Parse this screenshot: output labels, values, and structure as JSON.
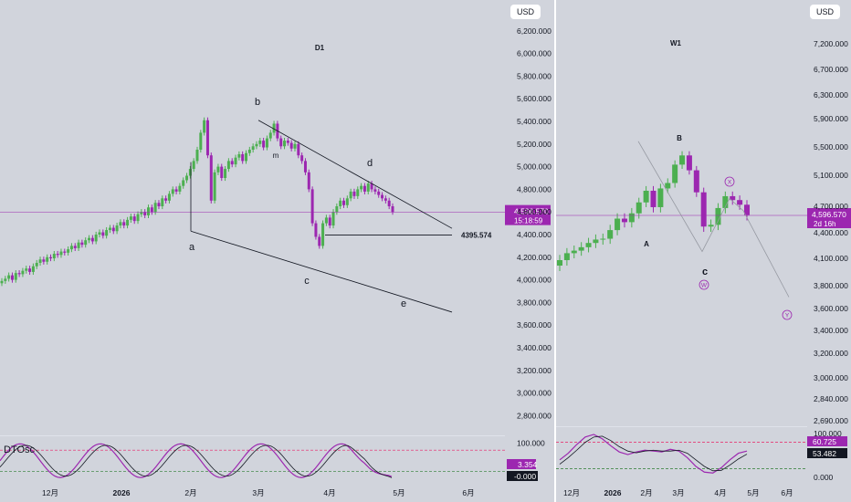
{
  "colors": {
    "up": "#4caf50",
    "down": "#9c27b0",
    "price_line": "#9c27b0",
    "trend_line": "#131722",
    "osc_k": "#9c27b0",
    "osc_d": "#131722",
    "level_high": "#e91e63",
    "level_low": "#2e7d32",
    "background": "#d1d4dc"
  },
  "left": {
    "currency": "USD",
    "timeframe": "D1",
    "price_label": "4,596.570",
    "countdown": "15:18:59",
    "level_label": "4395.574",
    "wave_labels": [
      "a",
      "b",
      "c",
      "d",
      "e",
      "m"
    ],
    "price_ticks": [
      "6,200.000",
      "6,000.000",
      "5,800.000",
      "5,600.000",
      "5,400.000",
      "5,200.000",
      "5,000.000",
      "4,800.000",
      "4,600.000",
      "4,400.000",
      "4,200.000",
      "4,000.000",
      "3,800.000",
      "3,600.000",
      "3,400.000",
      "3,200.000",
      "3,000.000",
      "2,800.000"
    ],
    "time_ticks": [
      "12月",
      "2026",
      "2月",
      "3月",
      "4月",
      "5月",
      "6月"
    ],
    "osc": {
      "title": "DTOsc",
      "ticks": [
        "100.000",
        "0.000"
      ],
      "value_k": "3.354",
      "value_d": "-0.000"
    }
  },
  "right": {
    "currency": "USD",
    "timeframe": "W1",
    "price_label": "4,596.570",
    "countdown": "2d 16h",
    "wave_labels": [
      "A",
      "B",
      "c"
    ],
    "circle_labels": [
      "X",
      "W",
      "Y"
    ],
    "price_ticks": [
      "7,200.000",
      "6,700.000",
      "6,300.000",
      "5,900.000",
      "5,500.000",
      "5,100.000",
      "4,700.000",
      "4,400.000",
      "4,100.000",
      "3,800.000",
      "3,600.000",
      "3,400.000",
      "3,200.000",
      "3,000.000",
      "2,840.000",
      "2,690.000"
    ],
    "time_ticks": [
      "12月",
      "2026",
      "2月",
      "3月",
      "4月",
      "5月",
      "6月"
    ],
    "osc": {
      "ticks": [
        "100.000",
        "0.000"
      ],
      "value_k": "60.725",
      "value_d": "53.482"
    }
  },
  "chart_data": [
    {
      "type": "candlestick",
      "timeframe": "D1",
      "currency": "USD",
      "last_price": 4596.57,
      "support_level": 4395.574,
      "y_range": [
        2700,
        6300
      ],
      "x_ticks": [
        "12月",
        "2026",
        "2月",
        "3月",
        "4月",
        "5月",
        "6月"
      ],
      "pivots": [
        {
          "label": "a",
          "price": 4430
        },
        {
          "label": "b",
          "price": 5410
        },
        {
          "label": "c",
          "price": 4080
        },
        {
          "label": "d",
          "price": 4870
        },
        {
          "label": "e",
          "price": 3780
        }
      ],
      "closes": [
        3990,
        4010,
        4040,
        4000,
        4060,
        4050,
        4080,
        4100,
        4070,
        4120,
        4150,
        4180,
        4160,
        4200,
        4190,
        4230,
        4220,
        4250,
        4240,
        4270,
        4300,
        4280,
        4330,
        4310,
        4350,
        4370,
        4340,
        4400,
        4420,
        4390,
        4440,
        4460,
        4430,
        4480,
        4510,
        4480,
        4530,
        4560,
        4520,
        4580,
        4600,
        4570,
        4640,
        4600,
        4680,
        4650,
        4720,
        4700,
        4760,
        4800,
        4780,
        4830,
        4880,
        4920,
        4980,
        5050,
        5150,
        5300,
        5410,
        5100,
        4700,
        4950,
        5000,
        4900,
        4980,
        5050,
        5020,
        5080,
        5110,
        5050,
        5120,
        5150,
        5180,
        5200,
        5230,
        5170,
        5250,
        5300,
        5380,
        5250,
        5180,
        5230,
        5210,
        5160,
        5200,
        5100,
        5050,
        4950,
        4800,
        4500,
        4380,
        4300,
        4500,
        4550,
        4480,
        4600,
        4650,
        4700,
        4660,
        4720,
        4780,
        4740,
        4800,
        4830,
        4780,
        4850,
        4800,
        4780,
        4750,
        4720,
        4700,
        4650,
        4600
      ],
      "oscillator": {
        "name": "DTOsc",
        "y_range": [
          0,
          100
        ],
        "last_k": 3.354,
        "last_d": -0.0
      }
    },
    {
      "type": "candlestick",
      "timeframe": "W1",
      "currency": "USD",
      "last_price": 4596.57,
      "y_range": [
        2690,
        7200
      ],
      "x_ticks": [
        "12月",
        "2026",
        "2月",
        "3月",
        "4月",
        "5月",
        "6月"
      ],
      "closes": [
        4080,
        4160,
        4190,
        4230,
        4280,
        4320,
        4330,
        4430,
        4560,
        4520,
        4620,
        4750,
        4900,
        4690,
        4930,
        5000,
        5250,
        5380,
        5170,
        4880,
        4470,
        4490,
        4680,
        4830,
        4780,
        4720,
        4600
      ],
      "oscillator": {
        "y_range": [
          0,
          100
        ],
        "last_k": 60.725,
        "last_d": 53.482
      }
    }
  ]
}
